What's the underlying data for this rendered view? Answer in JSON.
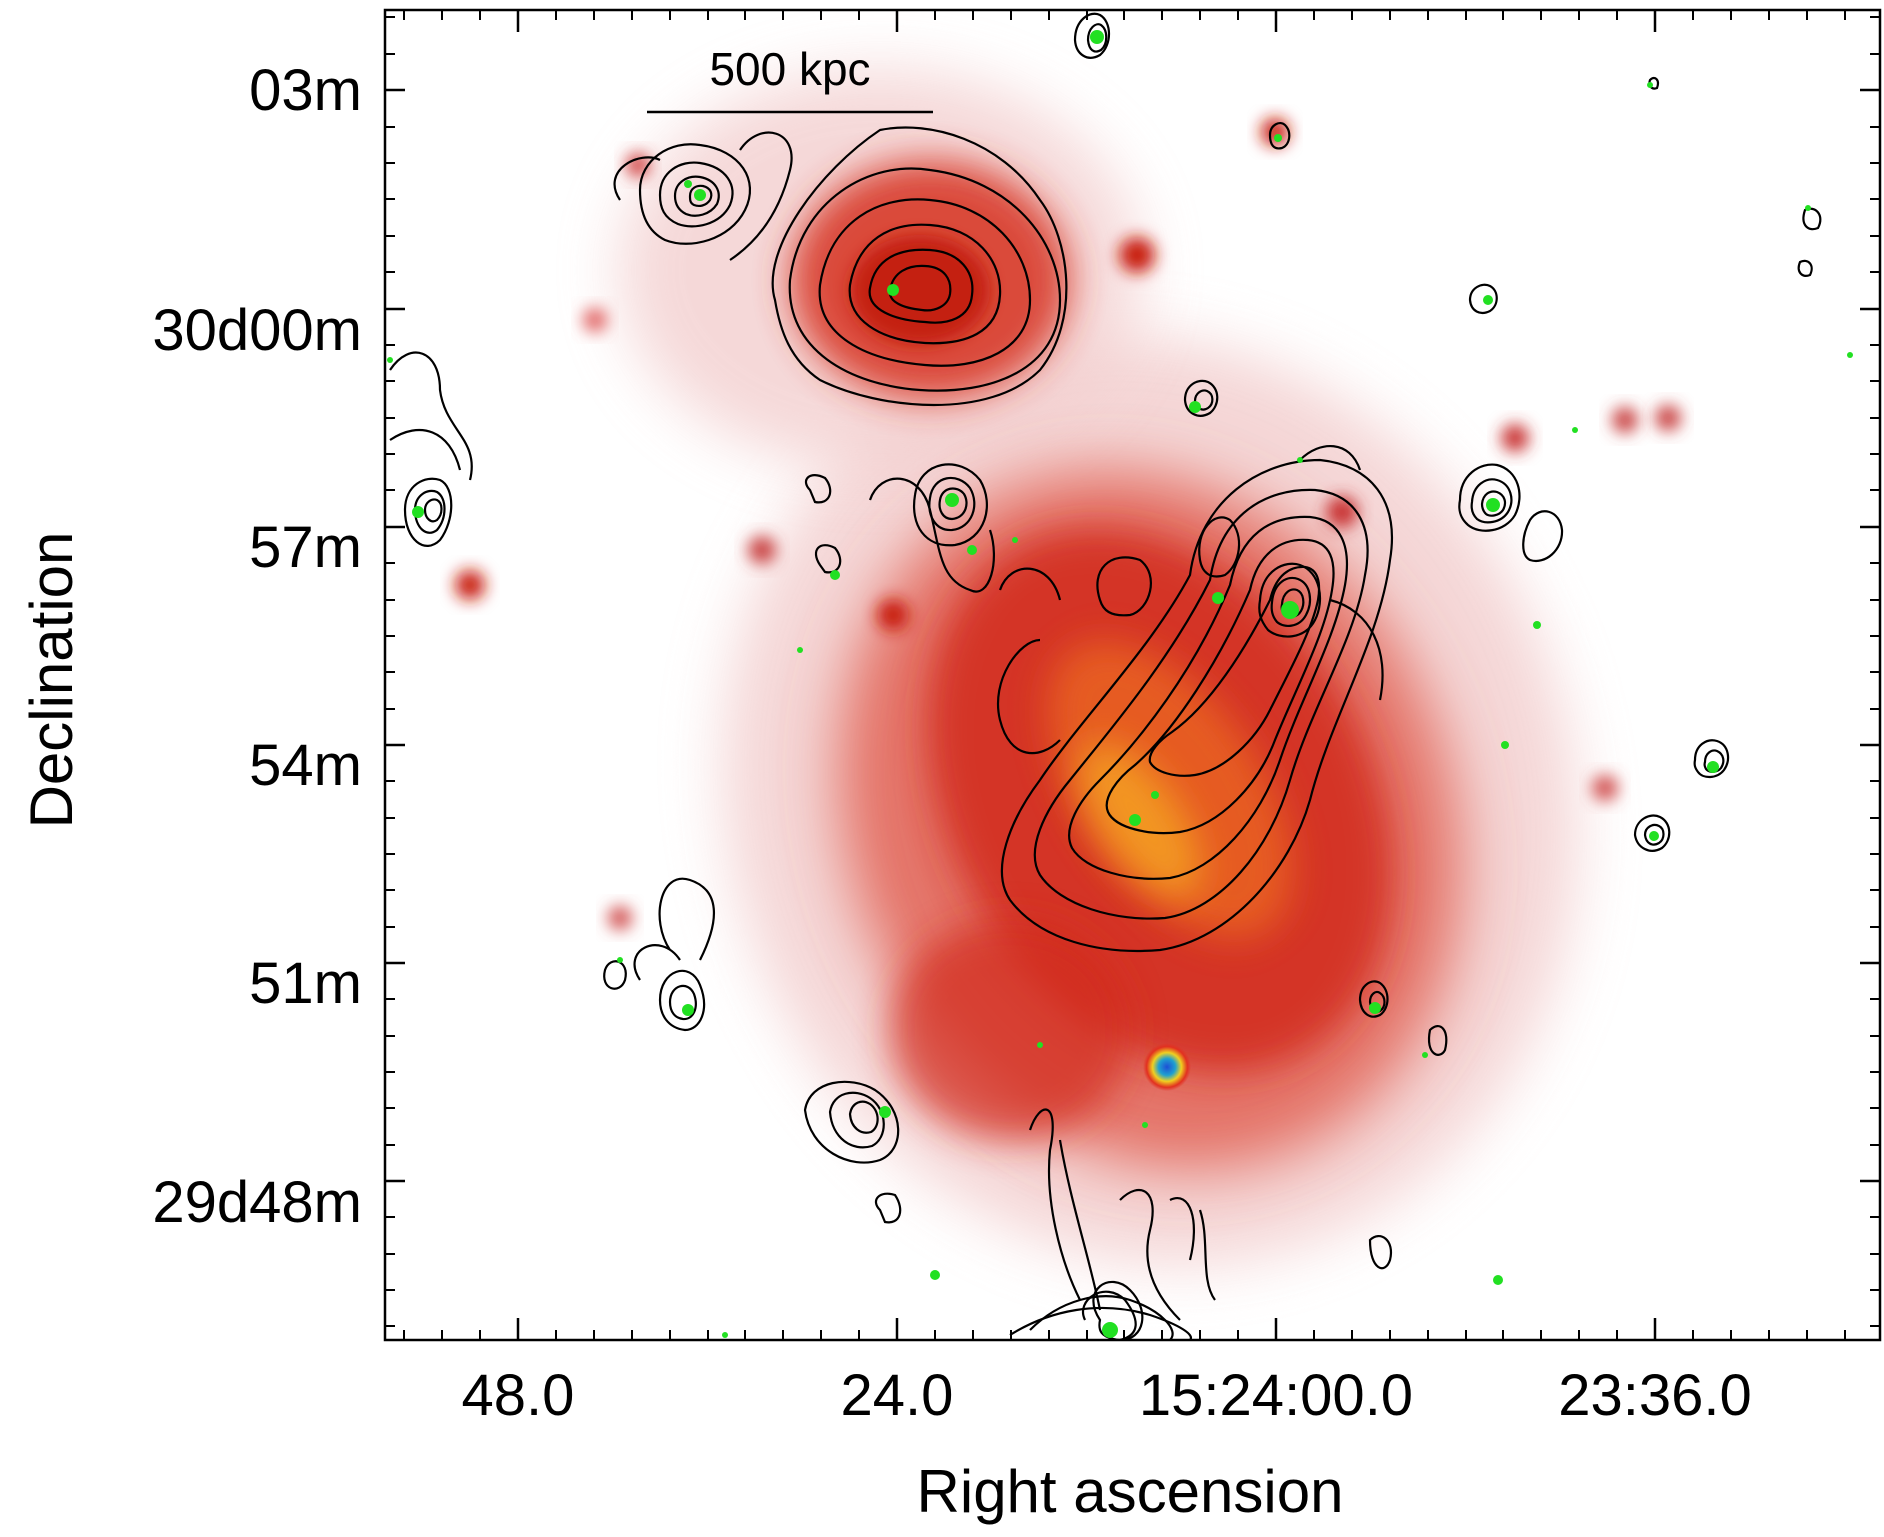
{
  "figure": {
    "x_axis_title": "Right ascension",
    "y_axis_title": "Declination",
    "x_tick_labels": [
      "48.0",
      "24.0",
      "15:24:00.0",
      "23:36.0"
    ],
    "y_tick_labels": [
      "03m",
      "30d00m",
      "57m",
      "54m",
      "51m",
      "29d48m"
    ],
    "scale_bar_label": "500 kpc"
  },
  "colors": {
    "emission_faint": "#f3cfcf",
    "emission_mid": "#d83a2a",
    "emission_bright": "#c21a10",
    "emission_peak": "#f4a020",
    "contour": "#000000",
    "optical_sources": "#22e022",
    "compact_source_core": "#1d6fd6"
  }
}
